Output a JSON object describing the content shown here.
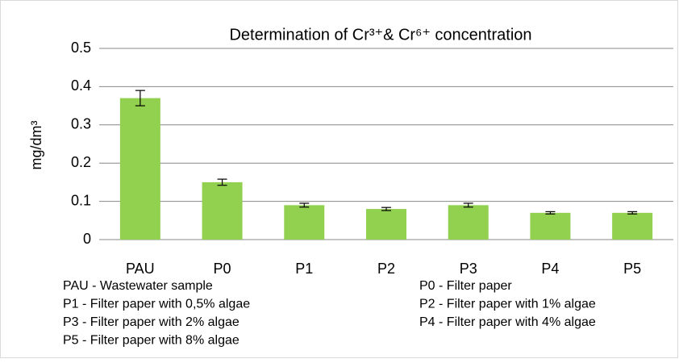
{
  "chart_data": {
    "type": "bar",
    "title": "Determination of Cr³⁺& Cr⁶⁺ concentration",
    "y_label": "mg/dm³",
    "categories": [
      "PAU",
      "P0",
      "P1",
      "P2",
      "P3",
      "P4",
      "P5"
    ],
    "values": [
      0.37,
      0.15,
      0.09,
      0.08,
      0.09,
      0.07,
      0.07
    ],
    "errors": [
      0.02,
      0.008,
      0.005,
      0.004,
      0.005,
      0.003,
      0.003
    ],
    "color": "#92d050",
    "ylim": [
      0,
      0.5
    ],
    "yticks": [
      0,
      0.1,
      0.2,
      0.3,
      0.4,
      0.5
    ],
    "grid": true,
    "notes": [
      "PAU -  Wastewater sample",
      "P0 - Filter paper",
      "P1 - Filter paper with 0,5% algae",
      "P2 - Filter paper with 1% algae",
      "P3 - Filter paper with 2%  algae",
      "P4 - Filter paper with  4% algae",
      "P5 - Filter paper with 8% algae"
    ]
  }
}
